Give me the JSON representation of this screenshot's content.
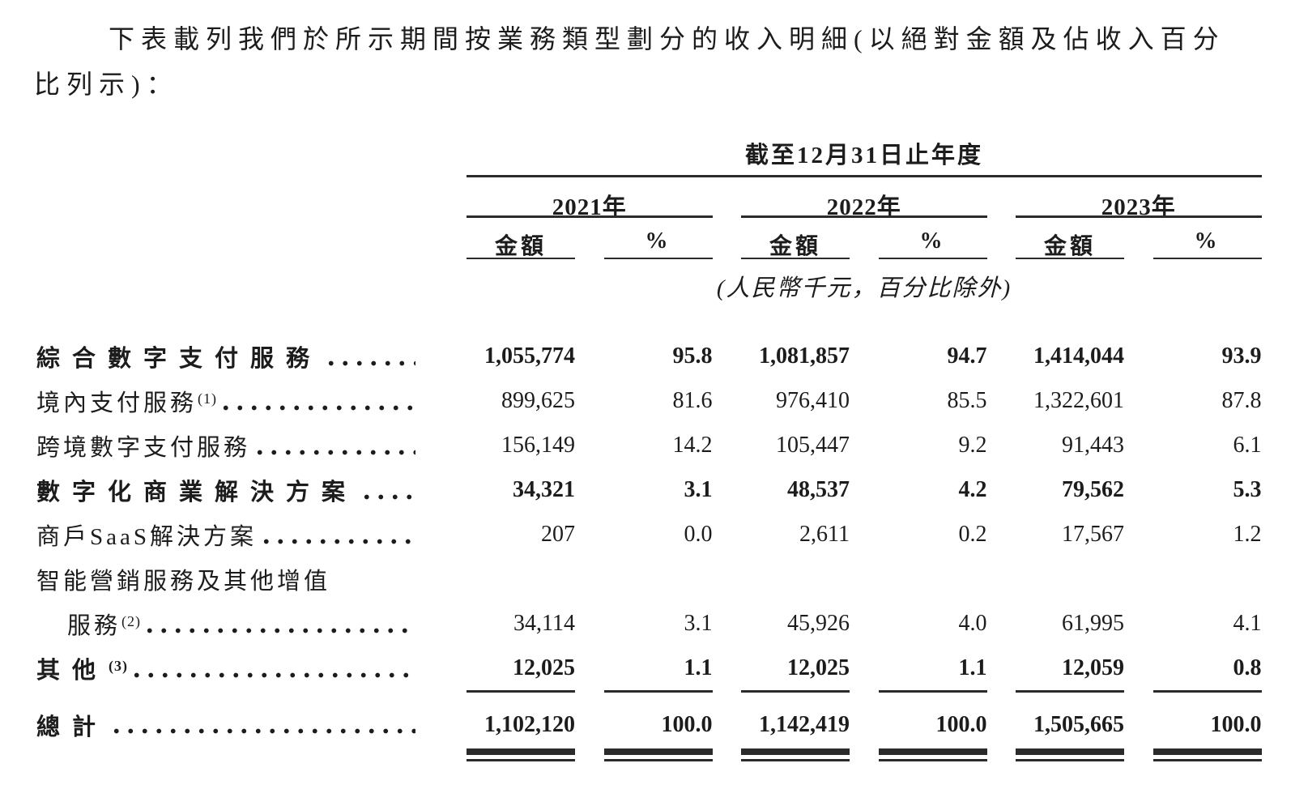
{
  "page": {
    "intro": "下表載列我們於所示期間按業務類型劃分的收入明細(以絕對金額及佔收入百分比列示)："
  },
  "table": {
    "period_header": "截至12月31日止年度",
    "unit_note": "(人民幣千元，百分比除外)",
    "year_groups": [
      {
        "year": "2021年",
        "amount_label": "金額",
        "percent_label": "%"
      },
      {
        "year": "2022年",
        "amount_label": "金額",
        "percent_label": "%"
      },
      {
        "year": "2023年",
        "amount_label": "金額",
        "percent_label": "%"
      }
    ],
    "rows": [
      {
        "label": "綜合數字支付服務",
        "sup": "",
        "values": [
          "1,055,774",
          "95.8",
          "1,081,857",
          "94.7",
          "1,414,044",
          "93.9"
        ]
      },
      {
        "label": "境內支付服務",
        "sup": "(1)",
        "values": [
          "899,625",
          "81.6",
          "976,410",
          "85.5",
          "1,322,601",
          "87.8"
        ]
      },
      {
        "label": "跨境數字支付服務",
        "sup": "",
        "values": [
          "156,149",
          "14.2",
          "105,447",
          "9.2",
          "91,443",
          "6.1"
        ]
      },
      {
        "label": "數字化商業解決方案",
        "sup": "",
        "values": [
          "34,321",
          "3.1",
          "48,537",
          "4.2",
          "79,562",
          "5.3"
        ]
      },
      {
        "label": "商戶SaaS解決方案",
        "sup": "",
        "values": [
          "207",
          "0.0",
          "2,611",
          "0.2",
          "17,567",
          "1.2"
        ]
      },
      {
        "label": "智能營銷服務及其他增值",
        "sup": "",
        "values": [
          "",
          "",
          "",
          "",
          "",
          ""
        ]
      },
      {
        "label": "服務",
        "sup": "(2)",
        "values": [
          "34,114",
          "3.1",
          "45,926",
          "4.0",
          "61,995",
          "4.1"
        ]
      },
      {
        "label": "其他",
        "sup": "(3)",
        "values": [
          "12,025",
          "1.1",
          "12,025",
          "1.1",
          "12,059",
          "0.8"
        ]
      },
      {
        "label": "總計",
        "sup": "",
        "values": [
          "1,102,120",
          "100.0",
          "1,142,419",
          "100.0",
          "1,505,665",
          "100.0"
        ]
      }
    ]
  }
}
